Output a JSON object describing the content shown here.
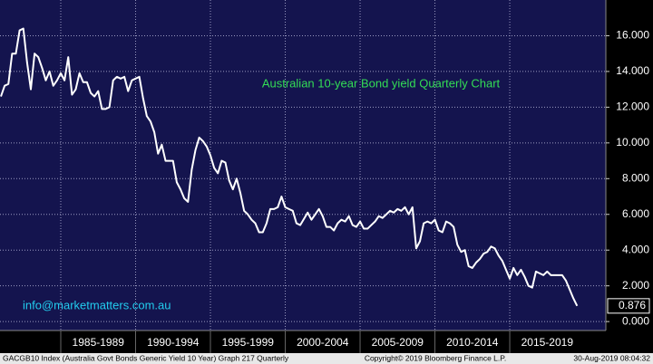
{
  "chart_data": {
    "type": "line",
    "title": "Australian 10-year Bond yield Quarterly Chart",
    "annotation": "info@marketmatters.com.au",
    "footer_left": "GACGB10 Index (Australia Govt Bonds Generic Yield 10 Year) Graph 217  Quarterly",
    "footer_center": "Copyright© 2019 Bloomberg Finance L.P.",
    "footer_right": "30-Aug-2019 08:04:32",
    "color": "#ffffff",
    "grid": true,
    "xlim": [
      1980.94,
      2021.42
    ],
    "ylim": [
      -0.5,
      18.0
    ],
    "xticks": [
      {
        "value": 1985,
        "label": "1985-1989"
      },
      {
        "value": 1990,
        "label": "1990-1994"
      },
      {
        "value": 1995,
        "label": "1995-1999"
      },
      {
        "value": 2000,
        "label": "2000-2004"
      },
      {
        "value": 2005,
        "label": "2005-2009"
      },
      {
        "value": 2010,
        "label": "2010-2014"
      },
      {
        "value": 2015,
        "label": "2015-2019"
      }
    ],
    "yticks": [
      {
        "value": 0,
        "label": "0.000"
      },
      {
        "value": 2,
        "label": "2.000"
      },
      {
        "value": 4,
        "label": "4.000"
      },
      {
        "value": 6,
        "label": "6.000"
      },
      {
        "value": 8,
        "label": "8.000"
      },
      {
        "value": 10,
        "label": "10.000"
      },
      {
        "value": 12,
        "label": "12.000"
      },
      {
        "value": 14,
        "label": "14.000"
      },
      {
        "value": 16,
        "label": "16.000"
      }
    ],
    "x": [
      1981,
      1981.25,
      1981.5,
      1981.75,
      1982,
      1982.25,
      1982.5,
      1982.75,
      1983,
      1983.25,
      1983.5,
      1983.75,
      1984,
      1984.25,
      1984.5,
      1984.75,
      1985,
      1985.25,
      1985.5,
      1985.75,
      1986,
      1986.25,
      1986.5,
      1986.75,
      1987,
      1987.25,
      1987.5,
      1987.75,
      1988,
      1988.25,
      1988.5,
      1988.75,
      1989,
      1989.25,
      1989.5,
      1989.75,
      1990,
      1990.25,
      1990.5,
      1990.75,
      1991,
      1991.25,
      1991.5,
      1991.75,
      1992,
      1992.25,
      1992.5,
      1992.75,
      1993,
      1993.25,
      1993.5,
      1993.75,
      1994,
      1994.25,
      1994.5,
      1994.75,
      1995,
      1995.25,
      1995.5,
      1995.75,
      1996,
      1996.25,
      1996.5,
      1996.75,
      1997,
      1997.25,
      1997.5,
      1997.75,
      1998,
      1998.25,
      1998.5,
      1998.75,
      1999,
      1999.25,
      1999.5,
      1999.75,
      2000,
      2000.25,
      2000.5,
      2000.75,
      2001,
      2001.5,
      2001.75,
      2002,
      2002.25,
      2002.5,
      2002.75,
      2003,
      2003.25,
      2003.5,
      2003.75,
      2004,
      2004.25,
      2004.5,
      2004.75,
      2005,
      2005.25,
      2005.5,
      2005.75,
      2006,
      2006.25,
      2006.5,
      2006.75,
      2007,
      2007.25,
      2007.5,
      2007.75,
      2008,
      2008.25,
      2008.5,
      2008.75,
      2009,
      2009.25,
      2009.5,
      2009.75,
      2010,
      2010.25,
      2010.5,
      2010.75,
      2011,
      2011.25,
      2011.5,
      2011.75,
      2012,
      2012.25,
      2012.5,
      2012.75,
      2013,
      2013.25,
      2013.5,
      2013.75,
      2014,
      2014.25,
      2014.5,
      2014.75,
      2015,
      2015.25,
      2015.5,
      2015.75,
      2016,
      2016.25,
      2016.5,
      2016.75,
      2017,
      2017.25,
      2017.5,
      2017.75,
      2018,
      2018.25,
      2018.5,
      2018.75,
      2019,
      2019.25,
      2019.5
    ],
    "values": [
      12.6,
      13.2,
      13.3,
      15.0,
      15.0,
      16.3,
      16.4,
      14.5,
      13.0,
      15.0,
      14.8,
      14.2,
      13.5,
      14.0,
      13.2,
      13.5,
      13.9,
      13.5,
      14.8,
      12.7,
      13.0,
      13.9,
      13.4,
      13.4,
      12.8,
      12.6,
      12.9,
      11.9,
      11.9,
      12.0,
      13.5,
      13.7,
      13.6,
      13.7,
      12.9,
      13.5,
      13.6,
      13.7,
      12.5,
      11.5,
      11.2,
      10.6,
      9.4,
      9.9,
      9.0,
      9.0,
      9.0,
      7.8,
      7.4,
      6.9,
      6.7,
      8.5,
      9.6,
      10.3,
      10.1,
      9.8,
      9.3,
      8.6,
      8.3,
      9.0,
      8.9,
      7.9,
      7.4,
      8.0,
      7.2,
      6.2,
      6.0,
      5.7,
      5.5,
      5.0,
      5.0,
      5.5,
      6.3,
      6.3,
      6.4,
      7.0,
      6.4,
      6.3,
      6.2,
      5.5,
      5.4,
      6.1,
      5.7,
      6.0,
      6.3,
      5.9,
      5.3,
      5.3,
      5.1,
      5.5,
      5.7,
      5.6,
      5.9,
      5.4,
      5.3,
      5.6,
      5.2,
      5.2,
      5.4,
      5.6,
      5.9,
      5.8,
      6.0,
      6.2,
      6.1,
      6.3,
      6.2,
      6.4,
      6.0,
      6.4,
      4.1,
      4.5,
      5.5,
      5.6,
      5.5,
      5.7,
      5.1,
      5.0,
      5.6,
      5.5,
      5.3,
      4.3,
      3.9,
      4.0,
      3.1,
      3.0,
      3.3,
      3.5,
      3.8,
      3.9,
      4.2,
      4.1,
      3.7,
      3.4,
      2.9,
      2.4,
      3.0,
      2.6,
      2.9,
      2.5,
      2.0,
      1.9,
      2.8,
      2.7,
      2.6,
      2.8,
      2.6,
      2.6,
      2.6,
      2.6,
      2.3,
      1.8,
      1.3,
      0.876
    ]
  }
}
